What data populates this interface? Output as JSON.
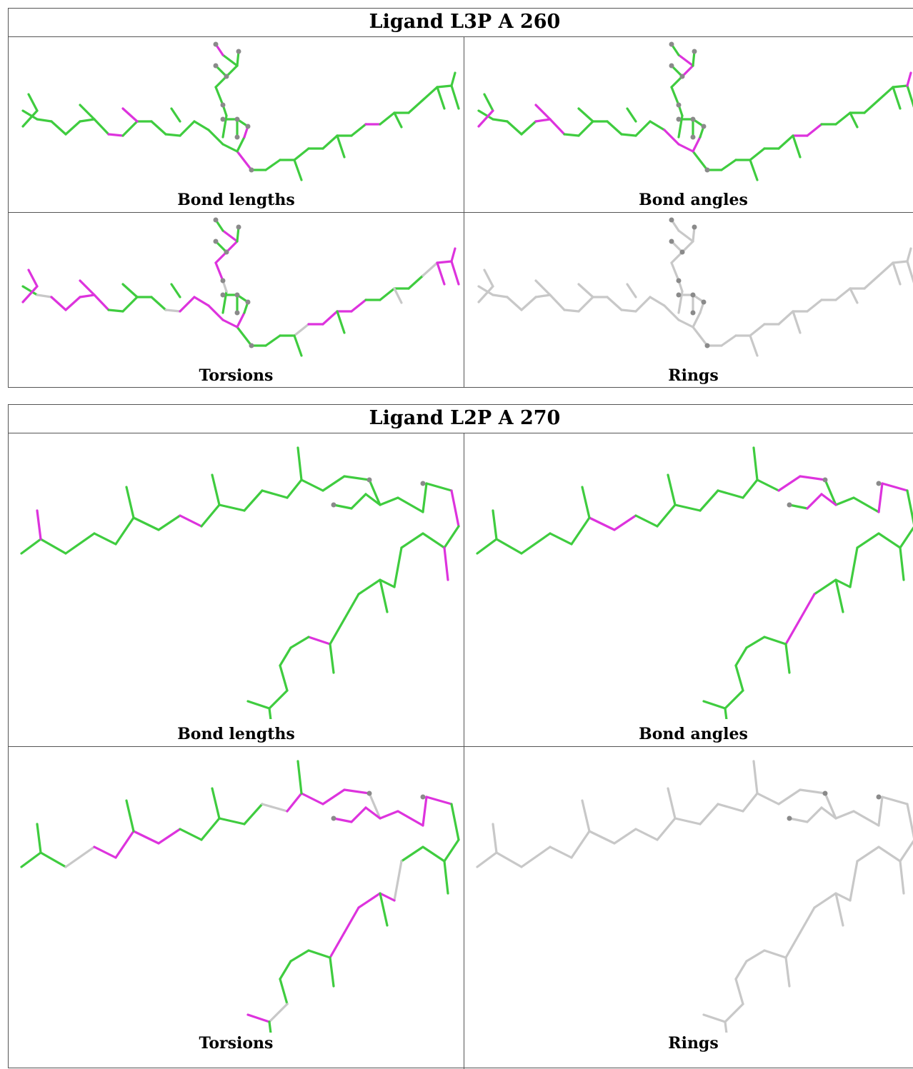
{
  "ligands": [
    {
      "title": "Ligand L3P A 260",
      "cells": [
        {
          "label": "Bond lengths",
          "scheme": "lengths"
        },
        {
          "label": "Bond angles",
          "scheme": "angles"
        },
        {
          "label": "Torsions",
          "scheme": "torsions"
        },
        {
          "label": "Rings",
          "scheme": "rings"
        }
      ]
    },
    {
      "title": "Ligand L2P A 270",
      "cells": [
        {
          "label": "Bond lengths",
          "scheme": "lengths"
        },
        {
          "label": "Bond angles",
          "scheme": "angles"
        },
        {
          "label": "Torsions",
          "scheme": "torsions"
        },
        {
          "label": "Rings",
          "scheme": "rings"
        }
      ]
    }
  ],
  "colors": {
    "ok": "#3fcc3f",
    "outlier": "#dd33dd",
    "neutral": "#c8c8c8",
    "atom": "#8a8a8a",
    "border": "#555555"
  }
}
